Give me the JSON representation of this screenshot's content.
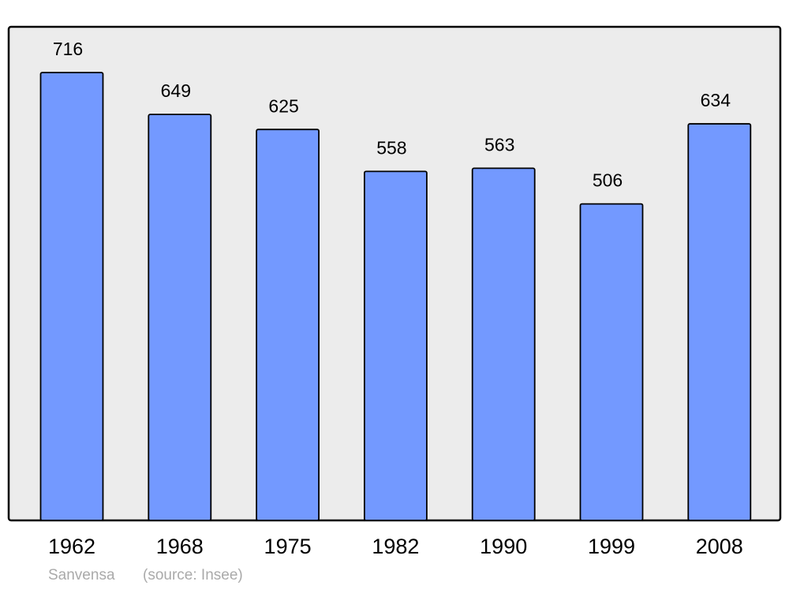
{
  "chart_data": {
    "type": "bar",
    "categories": [
      "1962",
      "1968",
      "1975",
      "1982",
      "1990",
      "1999",
      "2008"
    ],
    "values": [
      716,
      649,
      625,
      558,
      563,
      506,
      634
    ],
    "color": "#7399ff",
    "background": "#ececec",
    "author": "Sanvensa",
    "source": "(source: Insee)"
  }
}
